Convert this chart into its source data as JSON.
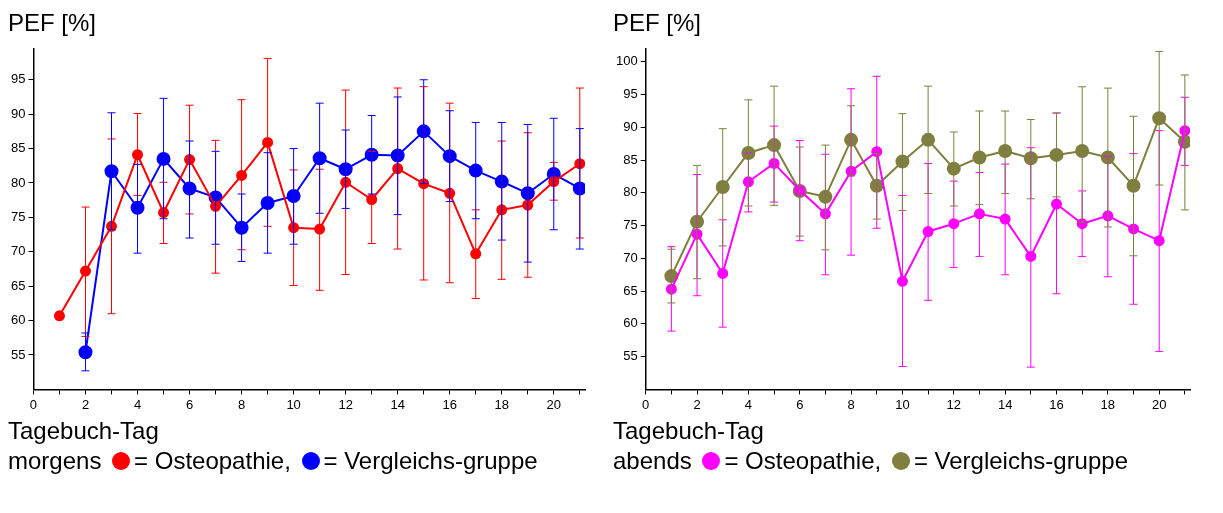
{
  "chart_data": [
    {
      "type": "line",
      "ylabel": "PEF [%]",
      "xlabel": "Tagebuch-Tag",
      "legend_title": "morgens",
      "legend": "bottom",
      "marker": "circle",
      "grid": false,
      "xlim": [
        0,
        21.2
      ],
      "ylim": [
        50,
        99.5
      ],
      "xticks": [
        0,
        {
          "value": 1,
          "label": null
        },
        2,
        {
          "value": 3,
          "label": null
        },
        4,
        {
          "value": 5,
          "label": null
        },
        6,
        {
          "value": 7,
          "label": null
        },
        8,
        {
          "value": 9,
          "label": null
        },
        10,
        {
          "value": 11,
          "label": null
        },
        12,
        {
          "value": 13,
          "label": null
        },
        14,
        {
          "value": 15,
          "label": null
        },
        16,
        {
          "value": 17,
          "label": null
        },
        18,
        {
          "value": 19,
          "label": null
        },
        20,
        {
          "value": 21,
          "label": null
        }
      ],
      "yticks": [
        55,
        60,
        65,
        70,
        75,
        80,
        85,
        90,
        95
      ],
      "series": [
        {
          "name": "= Osteopathie,",
          "color": "#ff0000",
          "x": [
            1,
            2,
            3,
            4,
            5,
            6,
            7,
            8,
            9,
            10,
            11,
            12,
            13,
            14,
            15,
            16,
            17,
            18,
            19,
            20,
            21
          ],
          "values": [
            60.7,
            67.2,
            73.7,
            84.1,
            75.7,
            83.4,
            76.6,
            81.1,
            85.9,
            73.5,
            73.3,
            80.1,
            77.6,
            82.1,
            79.9,
            78.5,
            69.7,
            76.1,
            76.8,
            80.2,
            82.8
          ],
          "errors": [
            null,
            [
              57.7,
              76.5
            ],
            [
              61,
              86.4
            ],
            [
              78.2,
              90.1
            ],
            [
              71.2,
              80.1
            ],
            [
              75.5,
              91.3
            ],
            [
              66.9,
              86.2
            ],
            [
              70.3,
              92.1
            ],
            [
              73.7,
              98.1
            ],
            [
              65.1,
              81.9
            ],
            [
              64.4,
              82
            ],
            [
              66.7,
              93.5
            ],
            [
              71.2,
              84.6
            ],
            [
              70.4,
              93.8
            ],
            [
              65.9,
              94
            ],
            [
              65.5,
              91.6
            ],
            [
              63.2,
              76.1
            ],
            [
              66,
              86.1
            ],
            [
              66.3,
              87.3
            ],
            [
              77.5,
              83
            ],
            [
              72,
              93.8
            ]
          ]
        },
        {
          "name": "= Vergleichs-gruppe",
          "color": "#0000ff",
          "x": [
            2,
            3,
            4,
            5,
            6,
            7,
            8,
            9,
            10,
            11,
            12,
            13,
            14,
            15,
            16,
            17,
            18,
            19,
            20,
            21
          ],
          "values": [
            55.4,
            81.7,
            76.4,
            83.5,
            79.2,
            77.9,
            73.5,
            77.1,
            78.1,
            83.6,
            82,
            84.1,
            84,
            87.5,
            83.9,
            81.8,
            80.2,
            78.5,
            81.3,
            79.2
          ],
          "errors": [
            [
              52.7,
              58.2
            ],
            [
              73.2,
              90.2
            ],
            [
              69.8,
              82.7
            ],
            [
              74.8,
              92.3
            ],
            [
              72,
              86.1
            ],
            [
              71.1,
              84.6
            ],
            [
              68.6,
              78.4
            ],
            [
              69.8,
              84.4
            ],
            [
              71.1,
              85
            ],
            [
              75.6,
              91.6
            ],
            [
              76.3,
              87.7
            ],
            [
              78.4,
              89.8
            ],
            [
              75.4,
              92.5
            ],
            [
              79.9,
              95
            ],
            [
              77.3,
              90.5
            ],
            [
              74.8,
              88.8
            ],
            [
              71.7,
              88.8
            ],
            [
              68.5,
              88.5
            ],
            [
              73.2,
              89.4
            ],
            [
              70.4,
              87.9
            ]
          ]
        }
      ]
    },
    {
      "type": "line",
      "ylabel": "PEF [%]",
      "xlabel": "Tagebuch-Tag",
      "legend_title": "abends",
      "legend": "bottom",
      "marker": "circle",
      "grid": false,
      "xlim": [
        0,
        21.2
      ],
      "ylim": [
        50,
        102
      ],
      "xticks": [
        0,
        {
          "value": 1,
          "label": null
        },
        2,
        {
          "value": 3,
          "label": null
        },
        4,
        {
          "value": 5,
          "label": null
        },
        6,
        {
          "value": 7,
          "label": null
        },
        8,
        {
          "value": 9,
          "label": null
        },
        10,
        {
          "value": 11,
          "label": null
        },
        12,
        {
          "value": 13,
          "label": null
        },
        14,
        {
          "value": 15,
          "label": null
        },
        16,
        {
          "value": 17,
          "label": null
        },
        18,
        {
          "value": 19,
          "label": null
        },
        20,
        {
          "value": 21,
          "label": null
        }
      ],
      "yticks": [
        55,
        60,
        65,
        70,
        75,
        80,
        85,
        90,
        95,
        100
      ],
      "series": [
        {
          "name": "= Osteopathie,",
          "color": "#ff00ff",
          "x": [
            1,
            2,
            3,
            4,
            5,
            6,
            7,
            8,
            9,
            10,
            11,
            12,
            13,
            14,
            15,
            16,
            17,
            18,
            19,
            20,
            21
          ],
          "values": [
            65.3,
            73.7,
            67.7,
            81.7,
            84.5,
            80.4,
            76.8,
            83.3,
            86.3,
            66.5,
            74.1,
            75.3,
            76.8,
            76,
            70.3,
            78.3,
            75.3,
            76.5,
            74.5,
            72.7,
            89.5
          ],
          "errors": [
            [
              58.9,
              71.8
            ],
            [
              64.3,
              82.8
            ],
            [
              59.5,
              75.9
            ],
            [
              77.1,
              86.1
            ],
            [
              78.6,
              90.2
            ],
            [
              72.7,
              88
            ],
            [
              67.5,
              85.9
            ],
            [
              70.5,
              95.9
            ],
            [
              74.6,
              97.8
            ],
            [
              53.5,
              79.6
            ],
            [
              63.6,
              84.5
            ],
            [
              68.6,
              81.8
            ],
            [
              70.3,
              83.1
            ],
            [
              67.5,
              84.4
            ],
            [
              53.4,
              86.9
            ],
            [
              64.6,
              92.2
            ],
            [
              70.3,
              80.3
            ],
            [
              67.2,
              85.6
            ],
            [
              63,
              86
            ],
            [
              55.8,
              89.5
            ],
            [
              84.2,
              94.6
            ]
          ]
        },
        {
          "name": "= Vergleichs-gruppe",
          "color": "#7f7f3f",
          "x": [
            1,
            2,
            3,
            4,
            5,
            6,
            7,
            8,
            9,
            10,
            11,
            12,
            13,
            14,
            15,
            16,
            17,
            18,
            19,
            20,
            21
          ],
          "values": [
            67.3,
            75.6,
            80.9,
            86.1,
            87.3,
            80.3,
            79.4,
            88.1,
            81.1,
            84.8,
            88.1,
            83.7,
            85.4,
            86.4,
            85.3,
            85.8,
            86.4,
            85.4,
            81.1,
            91.4,
            87.8
          ],
          "errors": [
            [
              63.2,
              71.4
            ],
            [
              66.9,
              84.2
            ],
            [
              71.9,
              89.8
            ],
            [
              78,
              94.2
            ],
            [
              78.1,
              96.3
            ],
            [
              73.4,
              87
            ],
            [
              71.3,
              87.3
            ],
            [
              82.6,
              93.3
            ],
            [
              76,
              86
            ],
            [
              77.3,
              92.1
            ],
            [
              79.9,
              96.3
            ],
            [
              78,
              89.3
            ],
            [
              78.2,
              92.5
            ],
            [
              79.9,
              92.5
            ],
            [
              79.1,
              91.2
            ],
            [
              79.4,
              92.2
            ],
            [
              75.5,
              96.2
            ],
            [
              74.8,
              96
            ],
            [
              70.4,
              91.7
            ],
            [
              81.2,
              101.6
            ],
            [
              77.4,
              98
            ]
          ]
        }
      ]
    }
  ]
}
